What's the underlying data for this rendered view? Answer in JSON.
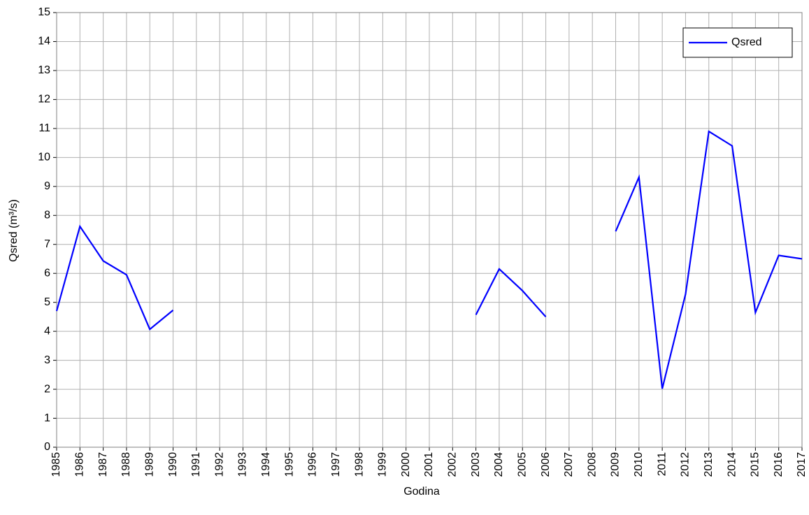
{
  "chart_data": {
    "type": "line",
    "x": [
      1985,
      1986,
      1987,
      1988,
      1989,
      1990,
      1991,
      1992,
      1993,
      1994,
      1995,
      1996,
      1997,
      1998,
      1999,
      2000,
      2001,
      2002,
      2003,
      2004,
      2005,
      2006,
      2007,
      2008,
      2009,
      2010,
      2011,
      2012,
      2013,
      2014,
      2015,
      2016,
      2017
    ],
    "series": [
      {
        "name": "Qsred",
        "color": "#0000ff",
        "values": [
          4.7,
          7.62,
          6.43,
          5.95,
          4.07,
          4.73,
          null,
          null,
          null,
          null,
          null,
          null,
          null,
          null,
          null,
          null,
          null,
          null,
          4.57,
          6.15,
          5.4,
          4.5,
          null,
          null,
          7.45,
          9.32,
          2.02,
          5.28,
          10.9,
          10.4,
          4.65,
          6.62,
          6.5
        ]
      }
    ],
    "xlabel": "Godina",
    "ylabel": "Qsred (m³/s)",
    "xlim": [
      1985,
      2017
    ],
    "xticks": [
      1985,
      1986,
      1987,
      1988,
      1989,
      1990,
      1991,
      1992,
      1993,
      1994,
      1995,
      1996,
      1997,
      1998,
      1999,
      2000,
      2001,
      2002,
      2003,
      2004,
      2005,
      2006,
      2007,
      2008,
      2009,
      2010,
      2011,
      2012,
      2013,
      2014,
      2015,
      2016,
      2017
    ],
    "ylim": [
      0,
      15
    ],
    "yticks": [
      0,
      1,
      2,
      3,
      4,
      5,
      6,
      7,
      8,
      9,
      10,
      11,
      12,
      13,
      14,
      15
    ],
    "grid": true,
    "legend": "upper right"
  }
}
